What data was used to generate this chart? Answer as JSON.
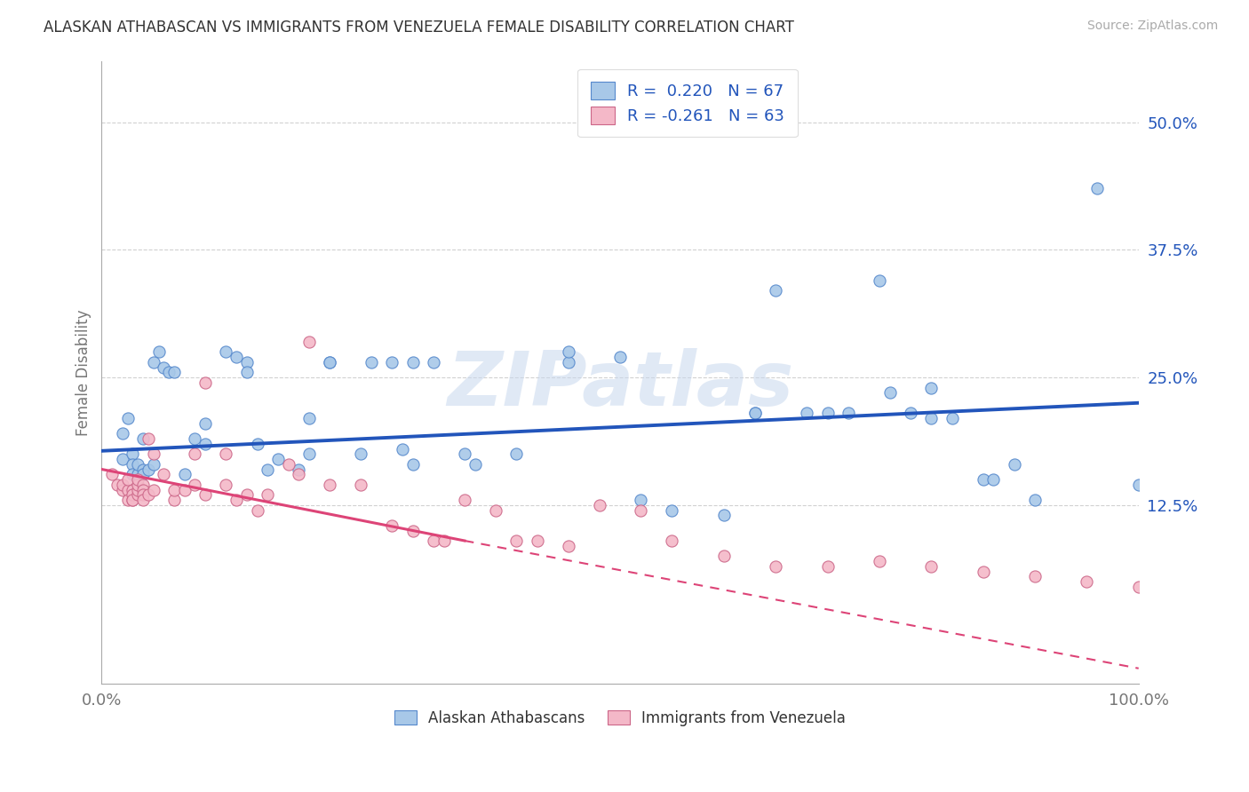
{
  "title": "ALASKAN ATHABASCAN VS IMMIGRANTS FROM VENEZUELA FEMALE DISABILITY CORRELATION CHART",
  "source": "Source: ZipAtlas.com",
  "ylabel": "Female Disability",
  "yticks": [
    "12.5%",
    "25.0%",
    "37.5%",
    "50.0%"
  ],
  "ytick_vals": [
    0.125,
    0.25,
    0.375,
    0.5
  ],
  "xlim": [
    0.0,
    1.0
  ],
  "ylim": [
    -0.05,
    0.56
  ],
  "blue_R": 0.22,
  "blue_N": 67,
  "pink_R": -0.261,
  "pink_N": 63,
  "blue_color": "#a8c8e8",
  "pink_color": "#f4b8c8",
  "blue_edge_color": "#5588cc",
  "pink_edge_color": "#cc6688",
  "blue_line_color": "#2255bb",
  "pink_line_color": "#dd4477",
  "blue_scatter": [
    [
      0.02,
      0.195
    ],
    [
      0.02,
      0.17
    ],
    [
      0.025,
      0.21
    ],
    [
      0.03,
      0.175
    ],
    [
      0.03,
      0.165
    ],
    [
      0.03,
      0.155
    ],
    [
      0.035,
      0.155
    ],
    [
      0.035,
      0.165
    ],
    [
      0.04,
      0.16
    ],
    [
      0.04,
      0.155
    ],
    [
      0.04,
      0.19
    ],
    [
      0.045,
      0.16
    ],
    [
      0.05,
      0.165
    ],
    [
      0.05,
      0.265
    ],
    [
      0.055,
      0.275
    ],
    [
      0.06,
      0.26
    ],
    [
      0.065,
      0.255
    ],
    [
      0.07,
      0.255
    ],
    [
      0.08,
      0.155
    ],
    [
      0.09,
      0.19
    ],
    [
      0.1,
      0.205
    ],
    [
      0.1,
      0.185
    ],
    [
      0.12,
      0.275
    ],
    [
      0.13,
      0.27
    ],
    [
      0.14,
      0.265
    ],
    [
      0.14,
      0.255
    ],
    [
      0.15,
      0.185
    ],
    [
      0.16,
      0.16
    ],
    [
      0.17,
      0.17
    ],
    [
      0.19,
      0.16
    ],
    [
      0.2,
      0.21
    ],
    [
      0.2,
      0.175
    ],
    [
      0.22,
      0.265
    ],
    [
      0.22,
      0.265
    ],
    [
      0.25,
      0.175
    ],
    [
      0.26,
      0.265
    ],
    [
      0.28,
      0.265
    ],
    [
      0.29,
      0.18
    ],
    [
      0.3,
      0.165
    ],
    [
      0.3,
      0.265
    ],
    [
      0.32,
      0.265
    ],
    [
      0.35,
      0.175
    ],
    [
      0.36,
      0.165
    ],
    [
      0.4,
      0.175
    ],
    [
      0.45,
      0.265
    ],
    [
      0.45,
      0.275
    ],
    [
      0.5,
      0.27
    ],
    [
      0.52,
      0.13
    ],
    [
      0.55,
      0.12
    ],
    [
      0.6,
      0.115
    ],
    [
      0.63,
      0.215
    ],
    [
      0.63,
      0.215
    ],
    [
      0.65,
      0.335
    ],
    [
      0.68,
      0.215
    ],
    [
      0.7,
      0.215
    ],
    [
      0.72,
      0.215
    ],
    [
      0.75,
      0.345
    ],
    [
      0.76,
      0.235
    ],
    [
      0.78,
      0.215
    ],
    [
      0.8,
      0.21
    ],
    [
      0.8,
      0.24
    ],
    [
      0.82,
      0.21
    ],
    [
      0.85,
      0.15
    ],
    [
      0.86,
      0.15
    ],
    [
      0.88,
      0.165
    ],
    [
      0.9,
      0.13
    ],
    [
      0.96,
      0.435
    ],
    [
      1.0,
      0.145
    ]
  ],
  "pink_scatter": [
    [
      0.01,
      0.155
    ],
    [
      0.015,
      0.145
    ],
    [
      0.02,
      0.14
    ],
    [
      0.02,
      0.145
    ],
    [
      0.025,
      0.14
    ],
    [
      0.025,
      0.15
    ],
    [
      0.025,
      0.13
    ],
    [
      0.03,
      0.14
    ],
    [
      0.03,
      0.13
    ],
    [
      0.03,
      0.135
    ],
    [
      0.03,
      0.13
    ],
    [
      0.035,
      0.135
    ],
    [
      0.035,
      0.14
    ],
    [
      0.035,
      0.145
    ],
    [
      0.035,
      0.15
    ],
    [
      0.04,
      0.145
    ],
    [
      0.04,
      0.14
    ],
    [
      0.04,
      0.135
    ],
    [
      0.04,
      0.13
    ],
    [
      0.045,
      0.135
    ],
    [
      0.045,
      0.19
    ],
    [
      0.05,
      0.14
    ],
    [
      0.05,
      0.175
    ],
    [
      0.06,
      0.155
    ],
    [
      0.07,
      0.13
    ],
    [
      0.07,
      0.14
    ],
    [
      0.08,
      0.14
    ],
    [
      0.09,
      0.145
    ],
    [
      0.09,
      0.175
    ],
    [
      0.1,
      0.135
    ],
    [
      0.1,
      0.245
    ],
    [
      0.12,
      0.145
    ],
    [
      0.12,
      0.175
    ],
    [
      0.13,
      0.13
    ],
    [
      0.14,
      0.135
    ],
    [
      0.15,
      0.12
    ],
    [
      0.16,
      0.135
    ],
    [
      0.18,
      0.165
    ],
    [
      0.19,
      0.155
    ],
    [
      0.2,
      0.285
    ],
    [
      0.22,
      0.145
    ],
    [
      0.25,
      0.145
    ],
    [
      0.28,
      0.105
    ],
    [
      0.3,
      0.1
    ],
    [
      0.32,
      0.09
    ],
    [
      0.33,
      0.09
    ],
    [
      0.35,
      0.13
    ],
    [
      0.38,
      0.12
    ],
    [
      0.4,
      0.09
    ],
    [
      0.42,
      0.09
    ],
    [
      0.45,
      0.085
    ],
    [
      0.48,
      0.125
    ],
    [
      0.52,
      0.12
    ],
    [
      0.55,
      0.09
    ],
    [
      0.6,
      0.075
    ],
    [
      0.65,
      0.065
    ],
    [
      0.7,
      0.065
    ],
    [
      0.75,
      0.07
    ],
    [
      0.8,
      0.065
    ],
    [
      0.85,
      0.06
    ],
    [
      0.9,
      0.055
    ],
    [
      0.95,
      0.05
    ],
    [
      1.0,
      0.045
    ]
  ],
  "blue_trendline": [
    0.0,
    1.0,
    0.178,
    0.225
  ],
  "pink_solid_trendline": [
    0.0,
    0.35,
    0.16,
    0.09
  ],
  "pink_dashed_trendline": [
    0.35,
    1.0,
    0.09,
    -0.035
  ],
  "legend1_label": "Alaskan Athabascans",
  "legend2_label": "Immigrants from Venezuela",
  "watermark": "ZIPatlas",
  "background_color": "#ffffff",
  "grid_color": "#cccccc"
}
